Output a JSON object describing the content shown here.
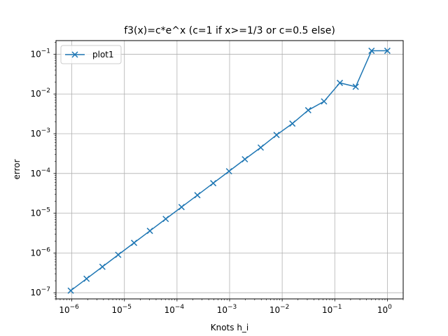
{
  "chart_data": {
    "type": "line",
    "title": "f3(x)=c*e^x (c=1 if x>=1/3 or c=0.5 else)",
    "xlabel": "Knots h_i",
    "ylabel": "error",
    "xscale": "log",
    "yscale": "log",
    "xlim": [
      5e-07,
      2.0
    ],
    "ylim": [
      7e-08,
      0.22
    ],
    "grid": true,
    "legend_position": "top-left",
    "x_ticks": [
      {
        "value": 1e-06,
        "mantissa": "10",
        "exp": "−6"
      },
      {
        "value": 1e-05,
        "mantissa": "10",
        "exp": "−5"
      },
      {
        "value": 0.0001,
        "mantissa": "10",
        "exp": "−4"
      },
      {
        "value": 0.001,
        "mantissa": "10",
        "exp": "−3"
      },
      {
        "value": 0.01,
        "mantissa": "10",
        "exp": "−2"
      },
      {
        "value": 0.1,
        "mantissa": "10",
        "exp": "−1"
      },
      {
        "value": 1,
        "mantissa": "10",
        "exp": "0"
      }
    ],
    "y_ticks": [
      {
        "value": 1e-07,
        "mantissa": "10",
        "exp": "−7"
      },
      {
        "value": 1e-06,
        "mantissa": "10",
        "exp": "−6"
      },
      {
        "value": 1e-05,
        "mantissa": "10",
        "exp": "−5"
      },
      {
        "value": 0.0001,
        "mantissa": "10",
        "exp": "−4"
      },
      {
        "value": 0.001,
        "mantissa": "10",
        "exp": "−3"
      },
      {
        "value": 0.01,
        "mantissa": "10",
        "exp": "−2"
      },
      {
        "value": 0.1,
        "mantissa": "10",
        "exp": "−1"
      }
    ],
    "series": [
      {
        "name": "plot1",
        "color": "#1f77b4",
        "marker": "x",
        "x": [
          9.5367e-07,
          1.9073e-06,
          3.8147e-06,
          7.6294e-06,
          1.5259e-05,
          3.0518e-05,
          6.1035e-05,
          0.00012207,
          0.00024414,
          0.00048828,
          0.00097656,
          0.0019531,
          0.0039063,
          0.0078125,
          0.015625,
          0.03125,
          0.0625,
          0.125,
          0.25,
          0.5,
          1.0
        ],
        "y": [
          1.13e-07,
          2.25e-07,
          4.5e-07,
          9e-07,
          1.8e-06,
          3.6e-06,
          7.2e-06,
          1.43e-05,
          2.85e-05,
          5.7e-05,
          0.000114,
          0.000228,
          0.00045,
          0.00093,
          0.0018,
          0.0039,
          0.0065,
          0.019,
          0.0152,
          0.122,
          0.122
        ]
      }
    ]
  }
}
